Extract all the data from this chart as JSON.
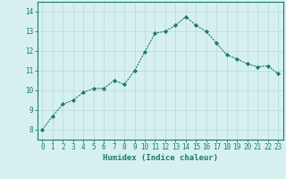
{
  "x": [
    0,
    1,
    2,
    3,
    4,
    5,
    6,
    7,
    8,
    9,
    10,
    11,
    12,
    13,
    14,
    15,
    16,
    17,
    18,
    19,
    20,
    21,
    22,
    23
  ],
  "y": [
    8.0,
    8.7,
    9.3,
    9.5,
    9.9,
    10.1,
    10.1,
    10.5,
    10.3,
    11.0,
    11.95,
    12.9,
    13.0,
    13.3,
    13.75,
    13.3,
    13.0,
    12.4,
    11.8,
    11.6,
    11.35,
    11.2,
    11.25,
    10.85
  ],
  "line_color": "#1a7a6e",
  "marker": "D",
  "marker_size": 2.2,
  "bg_color": "#d6f0f0",
  "grid_color": "#b8d8d8",
  "axis_color": "#1a7a6e",
  "xlabel": "Humidex (Indice chaleur)",
  "xlabel_fontsize": 6.5,
  "ylabel_ticks": [
    8,
    9,
    10,
    11,
    12,
    13,
    14
  ],
  "xlim": [
    -0.5,
    23.5
  ],
  "ylim": [
    7.5,
    14.5
  ],
  "tick_fontsize": 5.5
}
